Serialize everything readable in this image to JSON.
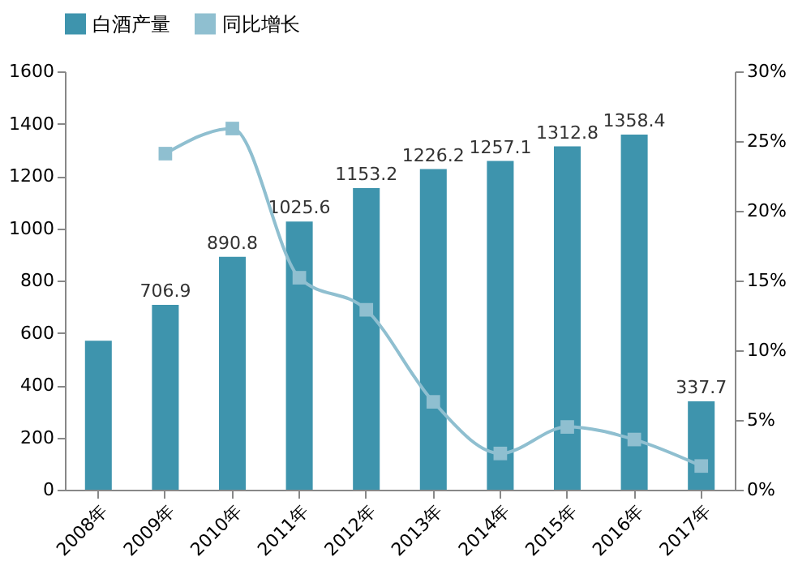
{
  "chart_data": {
    "type": "bar",
    "categories": [
      "2008年",
      "2009年",
      "2010年",
      "2011年",
      "2012年",
      "2013年",
      "2014年",
      "2015年",
      "2016年",
      "2017年"
    ],
    "series": [
      {
        "name": "白酒产量",
        "color": "#3e94ad",
        "values": [
          570,
          706.9,
          890.8,
          1025.6,
          1153.2,
          1226.2,
          1257.1,
          1312.8,
          1358.4,
          337.7
        ],
        "value_labels": [
          null,
          "706.9",
          "890.8",
          "1025.6",
          "1153.2",
          "1226.2",
          "1257.1",
          "1312.8",
          "1358.4",
          "337.7"
        ]
      },
      {
        "name": "同比增长",
        "type": "line",
        "axis": "y2",
        "color": "#8fbfd0",
        "values": [
          null,
          24.1,
          25.9,
          15.2,
          12.9,
          6.3,
          2.6,
          4.5,
          3.6,
          1.7
        ]
      }
    ],
    "ylim": [
      0,
      1600
    ],
    "yticks": [
      0,
      200,
      400,
      600,
      800,
      1000,
      1200,
      1400,
      1600
    ],
    "y2lim": [
      0,
      30
    ],
    "y2ticks": [
      {
        "value": 0,
        "label": "0%"
      },
      {
        "value": 5,
        "label": "5%"
      },
      {
        "value": 10,
        "label": "10%"
      },
      {
        "value": 15,
        "label": "15%"
      },
      {
        "value": 20,
        "label": "20%"
      },
      {
        "value": 25,
        "label": "25%"
      },
      {
        "value": 30,
        "label": "30%"
      }
    ],
    "legend": "top",
    "marker": "square",
    "grid": false
  }
}
